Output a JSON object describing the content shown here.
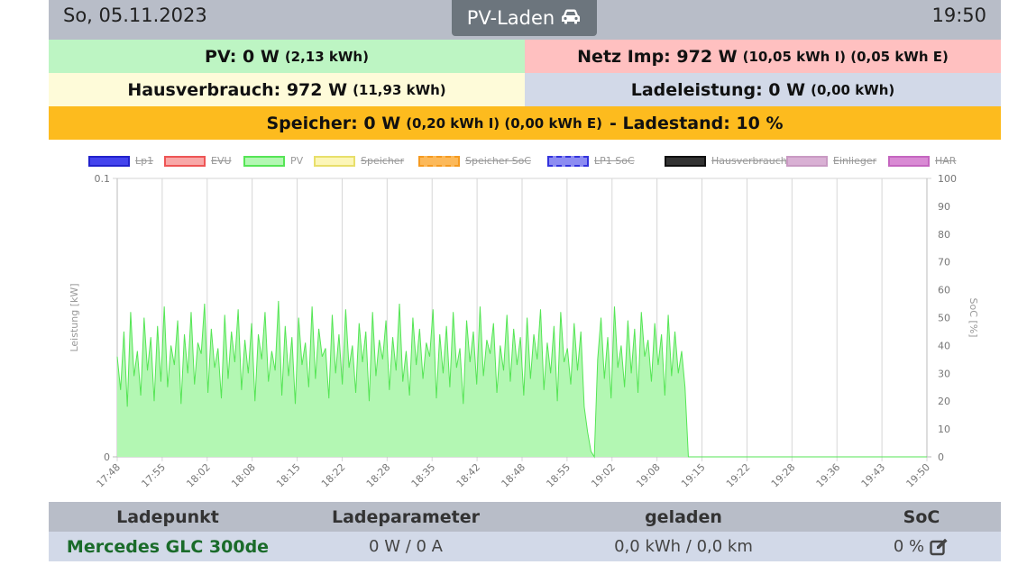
{
  "header": {
    "date": "So, 05.11.2023",
    "mode_label": "PV-Laden",
    "mode_icon": "car-icon",
    "time": "19:50"
  },
  "summary": {
    "pv": {
      "main": "PV: 0 W",
      "sub": "(2,13 kWh)"
    },
    "netz": {
      "main": "Netz Imp: 972 W",
      "sub": "(10,05 kWh I) (0,05 kWh E)"
    },
    "haus": {
      "main": "Hausverbrauch: 972 W",
      "sub": "(11,93 kWh)"
    },
    "ladeleistung": {
      "main": "Ladeleistung: 0 W",
      "sub": "(0,00 kWh)"
    },
    "speicher": {
      "main": "Speicher: 0 W",
      "sub": "(0,20 kWh I) (0,00 kWh E)",
      "tail": "- Ladestand: 10 %"
    }
  },
  "chart_data": {
    "type": "area",
    "legend": [
      {
        "name": "Lp1",
        "fill": "#4444ee",
        "stroke": "#2222cc",
        "dashed": false,
        "hidden": true
      },
      {
        "name": "EVU",
        "fill": "#f8a8a8",
        "stroke": "#ee5555",
        "dashed": false,
        "hidden": true
      },
      {
        "name": "PV",
        "fill": "#b3f7b3",
        "stroke": "#55e555",
        "dashed": false,
        "hidden": false
      },
      {
        "name": "Speicher",
        "fill": "#fcf6b8",
        "stroke": "#e8df6a",
        "dashed": false,
        "hidden": true
      },
      {
        "name": "Speicher SoC",
        "fill": "#fcb95a",
        "stroke": "#f59a20",
        "dashed": true,
        "hidden": true
      },
      {
        "name": "LP1 SoC",
        "fill": "#8c8cf2",
        "stroke": "#3333dd",
        "dashed": true,
        "hidden": true
      },
      {
        "name": "Hausverbrauch",
        "fill": "#333333",
        "stroke": "#111111",
        "dashed": false,
        "hidden": true
      },
      {
        "name": "Einlieger",
        "fill": "#d9b0d4",
        "stroke": "#c99ac3",
        "dashed": false,
        "hidden": true
      },
      {
        "name": "HAR",
        "fill": "#d98ad4",
        "stroke": "#c566c0",
        "dashed": false,
        "hidden": true
      }
    ],
    "ylabel_left": "Leistung [kW]",
    "ylabel_right": "SoC [%]",
    "ylim_left": [
      0,
      0.1
    ],
    "yticks_left": [
      "0",
      "0.1"
    ],
    "ylim_right": [
      0,
      100
    ],
    "yticks_right": [
      "0",
      "10",
      "20",
      "30",
      "40",
      "50",
      "60",
      "70",
      "80",
      "90",
      "100"
    ],
    "x_ticks": [
      "17:48",
      "17:55",
      "18:02",
      "18:08",
      "18:15",
      "18:22",
      "18:28",
      "18:35",
      "18:42",
      "18:48",
      "18:55",
      "19:02",
      "19:08",
      "19:15",
      "19:22",
      "19:28",
      "19:36",
      "19:43",
      "19:50"
    ],
    "series": [
      {
        "name": "PV",
        "color": "#55e555",
        "fill": "#b3f7b3",
        "x_range": [
          "17:48",
          "19:50"
        ],
        "values": [
          0.036,
          0.024,
          0.045,
          0.018,
          0.052,
          0.029,
          0.038,
          0.022,
          0.05,
          0.031,
          0.043,
          0.02,
          0.047,
          0.027,
          0.054,
          0.025,
          0.04,
          0.033,
          0.049,
          0.019,
          0.044,
          0.03,
          0.052,
          0.026,
          0.041,
          0.037,
          0.055,
          0.023,
          0.046,
          0.032,
          0.039,
          0.021,
          0.051,
          0.028,
          0.045,
          0.034,
          0.053,
          0.024,
          0.042,
          0.03,
          0.048,
          0.02,
          0.044,
          0.035,
          0.052,
          0.027,
          0.038,
          0.031,
          0.056,
          0.022,
          0.047,
          0.029,
          0.043,
          0.019,
          0.05,
          0.033,
          0.041,
          0.025,
          0.054,
          0.028,
          0.046,
          0.036,
          0.039,
          0.021,
          0.051,
          0.03,
          0.044,
          0.026,
          0.053,
          0.032,
          0.04,
          0.023,
          0.048,
          0.034,
          0.045,
          0.02,
          0.052,
          0.029,
          0.042,
          0.035,
          0.049,
          0.024,
          0.043,
          0.031,
          0.055,
          0.027,
          0.038,
          0.022,
          0.05,
          0.033,
          0.046,
          0.028,
          0.041,
          0.036,
          0.053,
          0.021,
          0.044,
          0.03,
          0.047,
          0.025,
          0.052,
          0.032,
          0.039,
          0.019,
          0.049,
          0.034,
          0.045,
          0.026,
          0.054,
          0.029,
          0.042,
          0.037,
          0.048,
          0.023,
          0.04,
          0.031,
          0.051,
          0.027,
          0.046,
          0.033,
          0.043,
          0.022,
          0.05,
          0.028,
          0.044,
          0.035,
          0.053,
          0.024,
          0.041,
          0.03,
          0.047,
          0.02,
          0.052,
          0.034,
          0.039,
          0.026,
          0.048,
          0.031,
          0.045,
          0.018,
          0.009,
          0.002,
          0.0,
          0.035,
          0.05,
          0.028,
          0.043,
          0.021,
          0.054,
          0.032,
          0.04,
          0.025,
          0.049,
          0.03,
          0.046,
          0.023,
          0.052,
          0.036,
          0.042,
          0.027,
          0.048,
          0.033,
          0.044,
          0.022,
          0.051,
          0.029,
          0.045,
          0.03,
          0.038,
          0.025,
          0.0,
          0.0,
          0.0,
          0.0,
          0.0,
          0.0,
          0.0,
          0.0,
          0.0,
          0.0,
          0.0,
          0.0,
          0.0,
          0.0,
          0.0,
          0.0,
          0.0,
          0.0,
          0.0,
          0.0,
          0.0,
          0.0,
          0.0,
          0.0,
          0.0,
          0.0,
          0.0,
          0.0,
          0.0,
          0.0,
          0.0,
          0.0,
          0.0,
          0.0,
          0.0,
          0.0,
          0.0,
          0.0,
          0.0,
          0.0,
          0.0,
          0.0,
          0.0,
          0.0,
          0.0,
          0.0,
          0.0,
          0.0,
          0.0,
          0.0,
          0.0,
          0.0,
          0.0,
          0.0,
          0.0,
          0.0,
          0.0,
          0.0,
          0.0,
          0.0,
          0.0,
          0.0,
          0.0,
          0.0,
          0.0,
          0.0,
          0.0,
          0.0,
          0.0,
          0.0,
          0.0,
          0.0
        ]
      }
    ],
    "grid": true,
    "legend_position": "top"
  },
  "table": {
    "headers": [
      "Ladepunkt",
      "Ladeparameter",
      "geladen",
      "SoC"
    ],
    "rows": [
      {
        "vehicle": "Mercedes GLC 300de",
        "params": "0 W / 0 A",
        "charged": "0,0 kWh / 0,0 km",
        "soc": "0 %",
        "soc_icon": "edit-icon"
      }
    ]
  }
}
